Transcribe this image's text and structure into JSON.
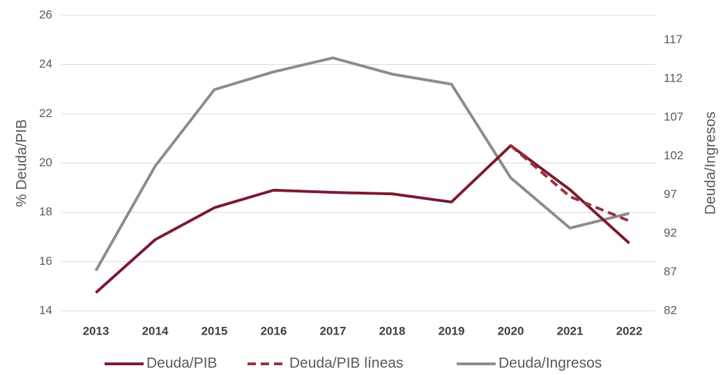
{
  "chart_data": {
    "type": "line",
    "categories": [
      "2013",
      "2014",
      "2015",
      "2016",
      "2017",
      "2018",
      "2019",
      "2020",
      "2021",
      "2022"
    ],
    "y_label": "% Deuda/PIB",
    "y2_label": "Deuda/Ingresos",
    "ylim": [
      14,
      26
    ],
    "yticks": [
      14,
      16,
      18,
      20,
      22,
      24,
      26
    ],
    "y2lim": [
      82,
      120.2
    ],
    "y2ticks": [
      82,
      87,
      92,
      97,
      102,
      107,
      112,
      117
    ],
    "grid": true,
    "legend": "bottom",
    "series": [
      {
        "name": "Deuda/PIB",
        "color": "#7b1a2e",
        "dashed": false,
        "values": [
          14.74,
          16.89,
          18.19,
          18.9,
          18.81,
          18.75,
          18.42,
          20.71,
          18.92,
          16.75
        ]
      },
      {
        "name": "Deuda/PIB líneas",
        "color": "#9b2f3a",
        "dashed": true,
        "values": [
          null,
          null,
          null,
          null,
          null,
          null,
          null,
          20.71,
          18.64,
          17.65
        ]
      },
      {
        "name": "Deuda/Ingresos",
        "color": "#8c8c8c",
        "dashed": false,
        "axis": "y2",
        "values": [
          87.2,
          100.7,
          110.6,
          112.9,
          114.7,
          112.6,
          111.3,
          99.2,
          92.7,
          94.6
        ]
      }
    ]
  }
}
